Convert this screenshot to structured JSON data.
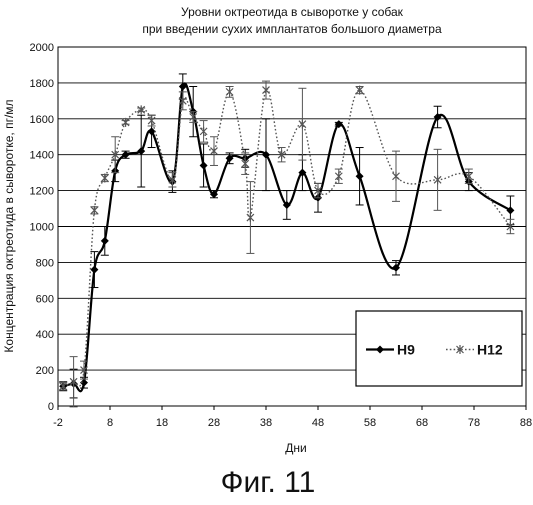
{
  "chart_data": {
    "type": "line",
    "title_lines": [
      "Уровни октреотида в сыворотке у собак",
      "при введении сухих имплантатов большого диаметра"
    ],
    "xlabel": "Дни",
    "ylabel": "Концентрация октреотида в сыворотке, пг/мл",
    "xlim": [
      -2,
      88
    ],
    "ylim": [
      0,
      2000
    ],
    "x_ticks": [
      -2,
      8,
      18,
      28,
      38,
      48,
      58,
      68,
      78,
      88
    ],
    "y_ticks": [
      0,
      200,
      400,
      600,
      800,
      1000,
      1200,
      1400,
      1600,
      1800,
      2000
    ],
    "grid": "horizontal",
    "legend_position": "bottom-right",
    "series": [
      {
        "name": "Н9",
        "style": "solid",
        "marker": "diamond",
        "color": "#000000",
        "points": [
          {
            "x": -1,
            "y": 110,
            "err": 25
          },
          {
            "x": 1,
            "y": 125,
            "err": 80
          },
          {
            "x": 3,
            "y": 130,
            "err": 30
          },
          {
            "x": 5,
            "y": 760,
            "err": 100
          },
          {
            "x": 7,
            "y": 920,
            "err": 80
          },
          {
            "x": 9,
            "y": 1310,
            "err": 60
          },
          {
            "x": 11,
            "y": 1400,
            "err": 20
          },
          {
            "x": 14,
            "y": 1420,
            "err": 200
          },
          {
            "x": 16,
            "y": 1530,
            "err": 90
          },
          {
            "x": 20,
            "y": 1250,
            "err": 60
          },
          {
            "x": 22,
            "y": 1780,
            "err": 70
          },
          {
            "x": 24,
            "y": 1640,
            "err": 140
          },
          {
            "x": 26,
            "y": 1340,
            "err": 120
          },
          {
            "x": 28,
            "y": 1180,
            "err": 20
          },
          {
            "x": 31,
            "y": 1380,
            "err": 30
          },
          {
            "x": 34,
            "y": 1380,
            "err": 50
          },
          {
            "x": 38,
            "y": 1400,
            "err": 200
          },
          {
            "x": 42,
            "y": 1120,
            "err": 80
          },
          {
            "x": 45,
            "y": 1300,
            "err": 100
          },
          {
            "x": 48,
            "y": 1160,
            "err": 80
          },
          {
            "x": 52,
            "y": 1570,
            "err": 10
          },
          {
            "x": 56,
            "y": 1280,
            "err": 160
          },
          {
            "x": 63,
            "y": 770,
            "err": 40
          },
          {
            "x": 71,
            "y": 1610,
            "err": 60
          },
          {
            "x": 77,
            "y": 1250,
            "err": 50
          },
          {
            "x": 85,
            "y": 1090,
            "err": 80
          }
        ]
      },
      {
        "name": "Н12",
        "style": "dotted",
        "marker": "star",
        "color": "#555555",
        "points": [
          {
            "x": -1,
            "y": 110,
            "err": 20
          },
          {
            "x": 1,
            "y": 135,
            "err": 140
          },
          {
            "x": 3,
            "y": 200,
            "err": 50
          },
          {
            "x": 5,
            "y": 1090,
            "err": 20
          },
          {
            "x": 7,
            "y": 1270,
            "err": 20
          },
          {
            "x": 9,
            "y": 1400,
            "err": 100
          },
          {
            "x": 11,
            "y": 1580,
            "err": 10
          },
          {
            "x": 14,
            "y": 1650,
            "err": 10
          },
          {
            "x": 16,
            "y": 1590,
            "err": 30
          },
          {
            "x": 20,
            "y": 1260,
            "err": 40
          },
          {
            "x": 22,
            "y": 1700,
            "err": 50
          },
          {
            "x": 24,
            "y": 1610,
            "err": 30
          },
          {
            "x": 26,
            "y": 1530,
            "err": 60
          },
          {
            "x": 28,
            "y": 1420,
            "err": 80
          },
          {
            "x": 31,
            "y": 1750,
            "err": 30
          },
          {
            "x": 34,
            "y": 1350,
            "err": 60
          },
          {
            "x": 35,
            "y": 1050,
            "err": 200
          },
          {
            "x": 38,
            "y": 1760,
            "err": 50
          },
          {
            "x": 41,
            "y": 1400,
            "err": 40
          },
          {
            "x": 45,
            "y": 1570,
            "err": 200
          },
          {
            "x": 48,
            "y": 1200,
            "err": 40
          },
          {
            "x": 52,
            "y": 1280,
            "err": 40
          },
          {
            "x": 56,
            "y": 1760,
            "err": 20
          },
          {
            "x": 63,
            "y": 1280,
            "err": 140
          },
          {
            "x": 71,
            "y": 1260,
            "err": 170
          },
          {
            "x": 77,
            "y": 1280,
            "err": 40
          },
          {
            "x": 85,
            "y": 1000,
            "err": 40
          }
        ]
      }
    ]
  },
  "figure_caption": "Фиг. 11"
}
